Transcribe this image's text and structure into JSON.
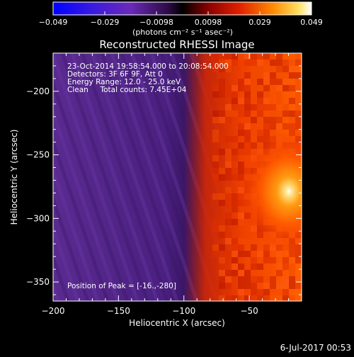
{
  "colorbar": {
    "tick_labels": [
      "−0.049",
      "−0.029",
      "−0.0098",
      "0.0098",
      "0.029",
      "0.049"
    ],
    "units_label": "(photons cm⁻² s⁻¹ asec⁻²)",
    "colors": {
      "low": "#0000ff",
      "mid_low": "#4b1a8a",
      "zero": "#000000",
      "mid": "#d01000",
      "high_mid": "#ff7a00",
      "high": "#ffffff"
    }
  },
  "image": {
    "title": "Reconstructed RHESSI Image",
    "info_lines": [
      "23-Oct-2014 19:58:54.000 to 20:08:54.000",
      "Detectors: 3F 6F 9F, Att 0",
      "Energy Range: 12.0 - 25.0 keV",
      "Clean     Total counts: 7.45E+04"
    ],
    "peak_label": "Position of Peak = [-16.,-280]",
    "peak_arcsec": {
      "x": -16,
      "y": -280
    }
  },
  "chart_data": {
    "type": "heatmap",
    "xlabel": "Heliocentric X (arcsec)",
    "ylabel": "Heliocentric Y (arcsec)",
    "xlim": [
      -200,
      -10
    ],
    "ylim": [
      -365,
      -170
    ],
    "x_ticks": [
      -200,
      -150,
      -100,
      -50
    ],
    "x_tick_labels": [
      "−200",
      "−150",
      "−100",
      "−50"
    ],
    "y_ticks": [
      -200,
      -250,
      -300,
      -350
    ],
    "y_tick_labels": [
      "−200",
      "−250",
      "−300",
      "−350"
    ],
    "colorbar_range": [
      -0.049,
      0.049
    ]
  },
  "footer": {
    "date_stamp": "6-Jul-2017 00:53"
  }
}
